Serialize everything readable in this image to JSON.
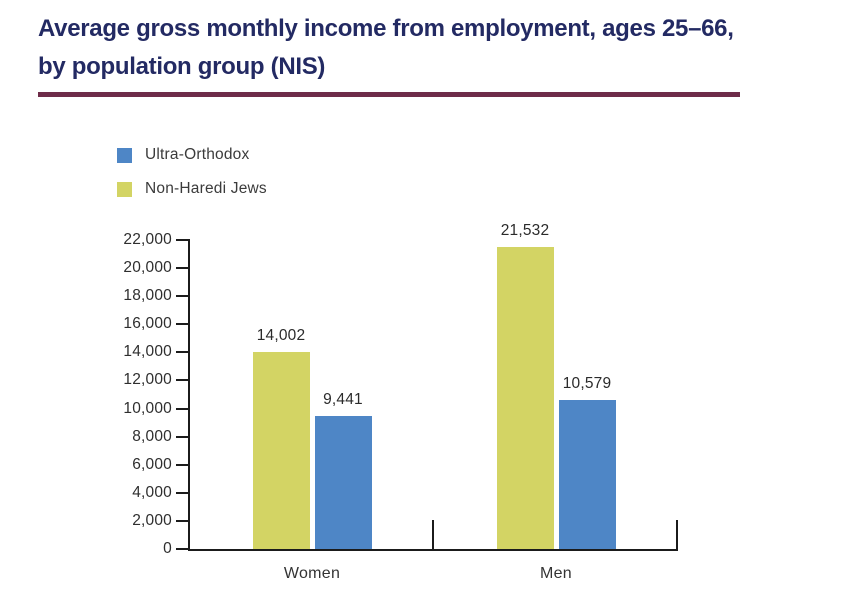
{
  "header": {
    "title_line1": "Average gross monthly income from employment, ages 25–66,",
    "title_line2": "by population group (NIS)",
    "title_color": "#232a63",
    "rule_color": "#6e2c49"
  },
  "legend": {
    "items": [
      {
        "label": "Ultra-Orthodox",
        "color": "#4e86c6"
      },
      {
        "label": "Non-Haredi Jews",
        "color": "#d3d464"
      }
    ]
  },
  "chart_data": {
    "type": "bar",
    "title": "Average gross monthly income from employment, ages 25–66, by population group (NIS)",
    "categories": [
      "Women",
      "Men"
    ],
    "series": [
      {
        "name": "Non-Haredi Jews",
        "color": "#d3d464",
        "values": [
          14002,
          21532
        ]
      },
      {
        "name": "Ultra-Orthodox",
        "color": "#4e86c6",
        "values": [
          9441,
          10579
        ]
      }
    ],
    "data_labels": [
      [
        "14,002",
        "21,532"
      ],
      [
        "9,441",
        "10,579"
      ]
    ],
    "y_ticks": [
      "22,000",
      "20,000",
      "18,000",
      "16,000",
      "14,000",
      "12,000",
      "10,000",
      "8,000",
      "6,000",
      "4,000",
      "2,000",
      "0"
    ],
    "ylim": [
      0,
      22000
    ],
    "xlabel": "",
    "ylabel": "",
    "grid": false,
    "legend_position": "top-left",
    "axis_color": "#1b1b1b",
    "text_color": "#2e2e2e"
  }
}
